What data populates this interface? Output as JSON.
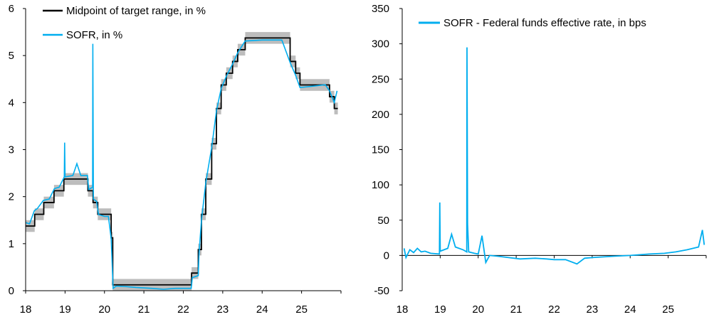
{
  "chart_data": [
    {
      "type": "line",
      "title": "",
      "xlabel": "",
      "ylabel": "",
      "ylim": [
        0,
        6
      ],
      "yticks": [
        "0",
        "1",
        "2",
        "3",
        "4",
        "5",
        "6"
      ],
      "xlim": [
        18,
        26
      ],
      "xticks": [
        "18",
        "19",
        "20",
        "21",
        "22",
        "23",
        "24",
        "25"
      ],
      "legend": {
        "placement": "top-left",
        "entries": [
          "Midpoint of target range, in %",
          "SOFR, in %"
        ]
      },
      "colors": {
        "midpoint": "#000000",
        "band": "#bdbdbd",
        "sofr": "#00aeef"
      },
      "target_steps": [
        [
          18.0,
          1.375
        ],
        [
          18.23,
          1.625
        ],
        [
          18.46,
          1.875
        ],
        [
          18.72,
          2.125
        ],
        [
          18.97,
          2.375
        ],
        [
          19.58,
          2.125
        ],
        [
          19.71,
          1.875
        ],
        [
          19.83,
          1.625
        ],
        [
          20.17,
          1.125
        ],
        [
          20.21,
          0.125
        ],
        [
          22.21,
          0.375
        ],
        [
          22.38,
          0.875
        ],
        [
          22.46,
          1.625
        ],
        [
          22.57,
          2.375
        ],
        [
          22.72,
          3.125
        ],
        [
          22.84,
          3.875
        ],
        [
          22.96,
          4.375
        ],
        [
          23.09,
          4.625
        ],
        [
          23.25,
          4.875
        ],
        [
          23.38,
          5.125
        ],
        [
          23.57,
          5.375
        ],
        [
          24.71,
          4.875
        ],
        [
          24.85,
          4.625
        ],
        [
          24.96,
          4.375
        ],
        [
          25.71,
          4.125
        ],
        [
          25.83,
          3.875
        ],
        [
          25.92,
          3.875
        ]
      ],
      "sofr_points": [
        [
          18.0,
          1.45
        ],
        [
          18.1,
          1.42
        ],
        [
          18.22,
          1.7
        ],
        [
          18.3,
          1.75
        ],
        [
          18.45,
          1.92
        ],
        [
          18.6,
          1.95
        ],
        [
          18.73,
          2.17
        ],
        [
          18.85,
          2.2
        ],
        [
          18.98,
          2.42
        ],
        [
          18.99,
          3.15
        ],
        [
          19.0,
          2.42
        ],
        [
          19.2,
          2.45
        ],
        [
          19.3,
          2.7
        ],
        [
          19.4,
          2.45
        ],
        [
          19.57,
          2.45
        ],
        [
          19.6,
          2.15
        ],
        [
          19.7,
          2.2
        ],
        [
          19.705,
          5.25
        ],
        [
          19.72,
          1.95
        ],
        [
          19.8,
          1.9
        ],
        [
          19.85,
          1.62
        ],
        [
          20.0,
          1.58
        ],
        [
          20.1,
          1.58
        ],
        [
          20.17,
          1.1
        ],
        [
          20.22,
          0.05
        ],
        [
          20.3,
          0.1
        ],
        [
          20.5,
          0.09
        ],
        [
          20.8,
          0.07
        ],
        [
          21.2,
          0.05
        ],
        [
          21.5,
          0.03
        ],
        [
          21.8,
          0.05
        ],
        [
          22.2,
          0.05
        ],
        [
          22.23,
          0.28
        ],
        [
          22.38,
          0.32
        ],
        [
          22.4,
          0.8
        ],
        [
          22.46,
          1.5
        ],
        [
          22.57,
          2.3
        ],
        [
          22.72,
          3.05
        ],
        [
          22.84,
          3.82
        ],
        [
          22.96,
          4.3
        ],
        [
          23.09,
          4.56
        ],
        [
          23.25,
          4.82
        ],
        [
          23.38,
          5.06
        ],
        [
          23.57,
          5.31
        ],
        [
          24.0,
          5.33
        ],
        [
          24.5,
          5.33
        ],
        [
          24.71,
          4.85
        ],
        [
          24.85,
          4.58
        ],
        [
          24.96,
          4.32
        ],
        [
          25.3,
          4.35
        ],
        [
          25.6,
          4.38
        ],
        [
          25.71,
          4.25
        ],
        [
          25.83,
          4.0
        ],
        [
          25.9,
          4.25
        ]
      ]
    },
    {
      "type": "line",
      "title": "",
      "xlabel": "",
      "ylabel": "",
      "ylim": [
        -50,
        350
      ],
      "yticks": [
        "-50",
        "0",
        "50",
        "100",
        "150",
        "200",
        "250",
        "300",
        "350"
      ],
      "xlim": [
        18,
        26
      ],
      "xticks": [
        "18",
        "19",
        "20",
        "21",
        "22",
        "23",
        "24",
        "25"
      ],
      "legend": {
        "placement": "top-center",
        "entries": [
          "SOFR - Federal funds effective rate, in bps"
        ]
      },
      "colors": {
        "spread": "#00aeef"
      },
      "spread_points": [
        [
          18.05,
          10
        ],
        [
          18.1,
          -3
        ],
        [
          18.2,
          8
        ],
        [
          18.3,
          4
        ],
        [
          18.4,
          10
        ],
        [
          18.5,
          5
        ],
        [
          18.6,
          6
        ],
        [
          18.75,
          3
        ],
        [
          18.98,
          2
        ],
        [
          18.99,
          75
        ],
        [
          19.0,
          6
        ],
        [
          19.2,
          10
        ],
        [
          19.3,
          30
        ],
        [
          19.4,
          12
        ],
        [
          19.6,
          8
        ],
        [
          19.7,
          5
        ],
        [
          19.705,
          295
        ],
        [
          19.72,
          45
        ],
        [
          19.75,
          5
        ],
        [
          19.9,
          3
        ],
        [
          20.0,
          2
        ],
        [
          20.1,
          28
        ],
        [
          20.2,
          -10
        ],
        [
          20.3,
          0
        ],
        [
          20.5,
          -1
        ],
        [
          20.8,
          -3
        ],
        [
          21.1,
          -5
        ],
        [
          21.5,
          -4
        ],
        [
          21.8,
          -5
        ],
        [
          22.0,
          -6
        ],
        [
          22.3,
          -6
        ],
        [
          22.6,
          -12
        ],
        [
          22.8,
          -4
        ],
        [
          23.0,
          -3
        ],
        [
          23.3,
          -2
        ],
        [
          23.6,
          -1
        ],
        [
          24.0,
          0
        ],
        [
          24.5,
          2
        ],
        [
          24.9,
          3
        ],
        [
          25.2,
          5
        ],
        [
          25.5,
          8
        ],
        [
          25.8,
          12
        ],
        [
          25.9,
          36
        ],
        [
          25.95,
          15
        ]
      ]
    }
  ]
}
